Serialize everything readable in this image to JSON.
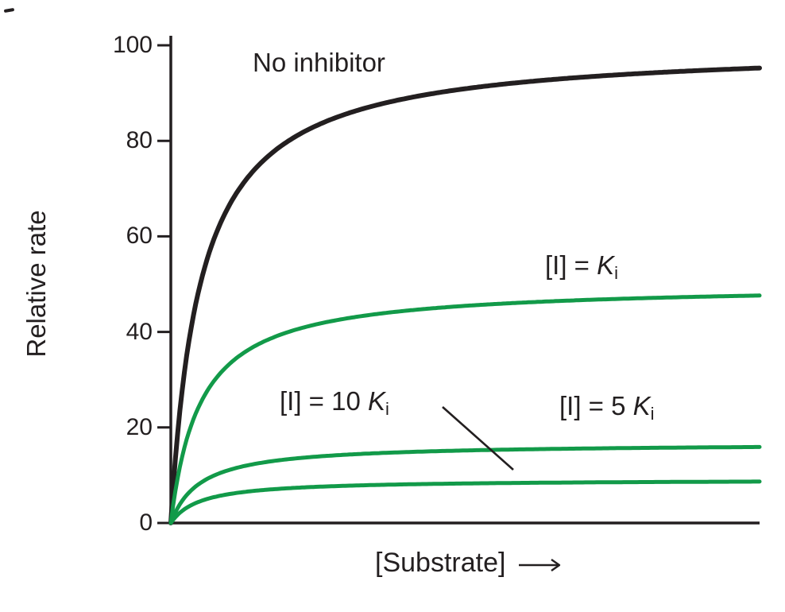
{
  "colors": {
    "axis": "#231f20",
    "curve_black": "#231f20",
    "curve_green": "#129a49"
  },
  "labels": {
    "no_inhibitor": "No inhibitor",
    "ki": {
      "prefix": "[I] = ",
      "symbol": "K",
      "subscript": "i"
    },
    "ki10": {
      "prefix": "[I] = 10 ",
      "symbol": "K",
      "subscript": "i"
    },
    "ki5": {
      "prefix": "[I] = 5 ",
      "symbol": "K",
      "subscript": "i"
    }
  },
  "chart_data": {
    "type": "line",
    "title": "",
    "xlabel": "[Substrate]",
    "ylabel": "Relative rate",
    "ylim": [
      0,
      100
    ],
    "yticks": [
      "100",
      "80",
      "60",
      "40",
      "20",
      "0"
    ],
    "x_axis": {
      "tick_labels": "none",
      "arrow": true,
      "range_in_km_units": [
        0,
        20
      ]
    },
    "grid": false,
    "legend": "none",
    "model": "michaelis_menten: v = vmax * S / (km + S)",
    "series": [
      {
        "name": "No inhibitor",
        "color": "#231f20",
        "vmax": 100,
        "km_rel": 1,
        "value_at_right_edge": 95
      },
      {
        "name": "[I] = Ki",
        "color": "#129a49",
        "vmax": 50,
        "km_rel": 1,
        "value_at_right_edge": 48
      },
      {
        "name": "[I] = 5 Ki",
        "color": "#129a49",
        "vmax": 16.7,
        "km_rel": 1,
        "value_at_right_edge": 16
      },
      {
        "name": "[I] = 10 Ki",
        "color": "#129a49",
        "vmax": 9.1,
        "km_rel": 1,
        "value_at_right_edge": 9
      }
    ],
    "annotations": [
      {
        "text": "No inhibitor",
        "target_series": "No inhibitor",
        "leader_line": false
      },
      {
        "text": "[I] = Ki",
        "target_series": "[I] = Ki",
        "leader_line": false
      },
      {
        "text": "[I] = 10 Ki",
        "target_series": "[I] = 10 Ki",
        "leader_line": true
      },
      {
        "text": "[I] = 5 Ki",
        "target_series": "[I] = 5 Ki",
        "leader_line": false
      }
    ]
  }
}
